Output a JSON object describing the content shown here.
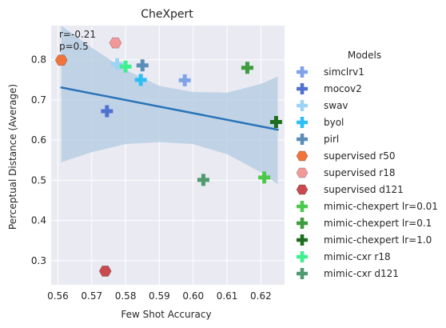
{
  "chart_data": {
    "type": "scatter",
    "title": "CheXpert",
    "xlabel": "Few Shot Accuracy",
    "ylabel": "Perceptual Distance (Average)",
    "xlim": [
      0.558,
      0.627
    ],
    "ylim": [
      0.24,
      0.885
    ],
    "xticks": [
      0.56,
      0.57,
      0.58,
      0.59,
      0.6,
      0.61,
      0.62
    ],
    "xtick_labels": [
      "0.56",
      "0.57",
      "0.58",
      "0.59",
      "0.60",
      "0.61",
      "0.62"
    ],
    "yticks": [
      0.3,
      0.4,
      0.5,
      0.6,
      0.7,
      0.8
    ],
    "ytick_labels": [
      "0.3",
      "0.4",
      "0.5",
      "0.6",
      "0.7",
      "0.8"
    ],
    "grid": true,
    "background": "#eaeaf2",
    "annotation": {
      "line1": "r=-0.21",
      "line2": "p=0.5"
    },
    "regression": {
      "color": "#2a73b8",
      "band_color": "#b9cfe4",
      "line": [
        [
          0.561,
          0.731
        ],
        [
          0.625,
          0.626
        ]
      ],
      "band_upper": [
        [
          0.561,
          0.918
        ],
        [
          0.57,
          0.83
        ],
        [
          0.58,
          0.775
        ],
        [
          0.59,
          0.735
        ],
        [
          0.6,
          0.72
        ],
        [
          0.61,
          0.718
        ],
        [
          0.62,
          0.74
        ],
        [
          0.625,
          0.758
        ]
      ],
      "band_lower": [
        [
          0.561,
          0.545
        ],
        [
          0.57,
          0.57
        ],
        [
          0.58,
          0.59
        ],
        [
          0.59,
          0.595
        ],
        [
          0.6,
          0.59
        ],
        [
          0.61,
          0.565
        ],
        [
          0.62,
          0.52
        ],
        [
          0.625,
          0.49
        ]
      ]
    },
    "legend": {
      "title": "Models",
      "placement": "outside-right"
    },
    "series": [
      {
        "name": "simclrv1",
        "marker": "plus",
        "color": "#7ea3e8",
        "x": 0.5975,
        "y": 0.749
      },
      {
        "name": "mocov2",
        "marker": "plus",
        "color": "#4f71d0",
        "x": 0.5745,
        "y": 0.672
      },
      {
        "name": "swav",
        "marker": "plus",
        "color": "#9ed3f5",
        "x": 0.5775,
        "y": 0.789
      },
      {
        "name": "byol",
        "marker": "plus",
        "color": "#2fbff5",
        "x": 0.5845,
        "y": 0.75
      },
      {
        "name": "pirl",
        "marker": "plus",
        "color": "#5b8db8",
        "x": 0.585,
        "y": 0.786
      },
      {
        "name": "supervised r50",
        "marker": "hexagon",
        "color": "#f2743a",
        "x": 0.561,
        "y": 0.799
      },
      {
        "name": "supervised r18",
        "marker": "hexagon",
        "color": "#f29898",
        "x": 0.577,
        "y": 0.842
      },
      {
        "name": "supervised d121",
        "marker": "hexagon",
        "color": "#c84a4e",
        "x": 0.574,
        "y": 0.274
      },
      {
        "name": "mimic-chexpert lr=0.01",
        "marker": "plus",
        "color": "#4cc94c",
        "x": 0.621,
        "y": 0.507
      },
      {
        "name": "mimic-chexpert lr=0.1",
        "marker": "plus",
        "color": "#3f9c3f",
        "x": 0.616,
        "y": 0.78
      },
      {
        "name": "mimic-chexpert lr=1.0",
        "marker": "plus",
        "color": "#1f6e1f",
        "x": 0.6245,
        "y": 0.645
      },
      {
        "name": "mimic-cxr r18",
        "marker": "plus",
        "color": "#3ff08f",
        "x": 0.58,
        "y": 0.783
      },
      {
        "name": "mimic-cxr d121",
        "marker": "plus",
        "color": "#4f9a6f",
        "x": 0.603,
        "y": 0.501
      }
    ]
  }
}
